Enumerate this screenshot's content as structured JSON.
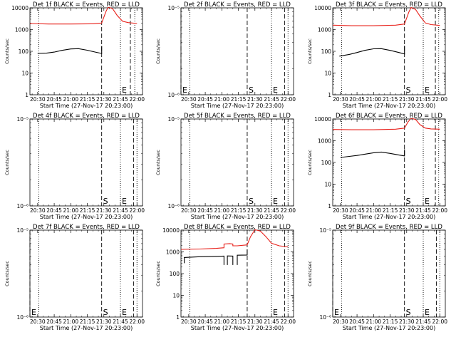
{
  "chart_data": [
    {
      "type": "line",
      "title": "Det 1f BLACK = Events, RED = LLD",
      "xlabel": "Start Time (27-Nov-17 20:23:00)",
      "ylabel": "Counts/sec",
      "yscale": "log",
      "ylim": [
        1,
        10000
      ],
      "ytick_values": [
        1,
        10,
        100,
        1000,
        10000
      ],
      "ytick_labels": [
        "1",
        "10",
        "100",
        "1000",
        "10000"
      ],
      "xlim": [
        "20:23",
        "22:05"
      ],
      "xtick_labels": [
        "20:30",
        "20:45",
        "21:00",
        "21:15",
        "21:30",
        "21:45",
        "22:00"
      ],
      "markers": [
        {
          "time": "20:31",
          "style": "dotted",
          "label": ""
        },
        {
          "time": "21:28",
          "style": "dashed",
          "label": ""
        },
        {
          "time": "21:45",
          "style": "dotted",
          "label": "E"
        },
        {
          "time": "21:54",
          "style": "dashed",
          "label": ""
        },
        {
          "time": "21:58",
          "style": "dotted",
          "label": ""
        }
      ],
      "series": [
        {
          "color": "#000000",
          "segments": [
            [
              [
                "20:30",
                80
              ],
              [
                "20:38",
                82
              ],
              [
                "20:45",
                92
              ],
              [
                "20:52",
                110
              ],
              [
                "21:00",
                128
              ],
              [
                "21:07",
                132
              ],
              [
                "21:15",
                112
              ],
              [
                "21:23",
                90
              ],
              [
                "21:28",
                80
              ],
              [
                "21:28",
                175
              ]
            ]
          ]
        },
        {
          "color": "#e8201a",
          "segments": [
            [
              [
                "20:23",
                1900
              ],
              [
                "20:40",
                1800
              ],
              [
                "21:00",
                1800
              ],
              [
                "21:20",
                1850
              ],
              [
                "21:28",
                2000
              ],
              [
                "21:32",
                7000
              ],
              [
                "21:34",
                11000
              ],
              [
                "21:38",
                9000
              ],
              [
                "21:42",
                4500
              ],
              [
                "21:47",
                2400
              ],
              [
                "21:52",
                2100
              ],
              [
                "22:00",
                1900
              ]
            ]
          ]
        }
      ]
    },
    {
      "type": "line",
      "title": "Det 2f BLACK = Events, RED = LLD",
      "xlabel": "Start Time (27-Nov-17 20:23:00)",
      "ylabel": "Counts/sec",
      "yscale": "log",
      "ylim": [
        1e-06,
        1e-05
      ],
      "ytick_values": [
        1e-06,
        1e-05
      ],
      "ytick_labels": [
        "10⁻⁶",
        "10⁻⁵"
      ],
      "xlim": [
        "20:23",
        "22:05"
      ],
      "xtick_labels": [
        "20:30",
        "20:45",
        "21:00",
        "21:15",
        "21:30",
        "21:45",
        "22:00"
      ],
      "markers": [
        {
          "time": "20:23",
          "style": "dashed",
          "label": "E"
        },
        {
          "time": "20:31",
          "style": "dotted",
          "label": ""
        },
        {
          "time": "21:23",
          "style": "dashed",
          "label": "S"
        },
        {
          "time": "21:45",
          "style": "dotted",
          "label": "E"
        },
        {
          "time": "21:57",
          "style": "dashed",
          "label": ""
        },
        {
          "time": "22:00",
          "style": "dotted",
          "label": ""
        }
      ],
      "series": []
    },
    {
      "type": "line",
      "title": "Det 3f BLACK = Events, RED = LLD",
      "xlabel": "Start Time (27-Nov-17 20:23:00)",
      "ylabel": "Counts/sec",
      "yscale": "log",
      "ylim": [
        1,
        10000
      ],
      "ytick_values": [
        1,
        10,
        100,
        1000,
        10000
      ],
      "ytick_labels": [
        "1",
        "10",
        "100",
        "1000",
        "10000"
      ],
      "xlim": [
        "20:23",
        "22:05"
      ],
      "xtick_labels": [
        "20:30",
        "20:45",
        "21:00",
        "21:15",
        "21:30",
        "21:45",
        "22:00"
      ],
      "markers": [
        {
          "time": "20:31",
          "style": "dotted",
          "label": ""
        },
        {
          "time": "21:28",
          "style": "dashed",
          "label": "S"
        },
        {
          "time": "21:45",
          "style": "dotted",
          "label": "E"
        },
        {
          "time": "21:56",
          "style": "dashed",
          "label": ""
        },
        {
          "time": "21:59",
          "style": "dotted",
          "label": ""
        }
      ],
      "series": [
        {
          "color": "#000000",
          "segments": [
            [
              [
                "20:29",
                60
              ],
              [
                "20:38",
                72
              ],
              [
                "20:45",
                88
              ],
              [
                "20:52",
                110
              ],
              [
                "21:00",
                130
              ],
              [
                "21:07",
                132
              ],
              [
                "21:15",
                110
              ],
              [
                "21:23",
                88
              ],
              [
                "21:28",
                75
              ],
              [
                "21:28",
                180
              ]
            ]
          ]
        },
        {
          "color": "#e8201a",
          "segments": [
            [
              [
                "20:23",
                1600
              ],
              [
                "20:40",
                1500
              ],
              [
                "21:00",
                1500
              ],
              [
                "21:20",
                1600
              ],
              [
                "21:28",
                1800
              ],
              [
                "21:32",
                6500
              ],
              [
                "21:34",
                10500
              ],
              [
                "21:38",
                8500
              ],
              [
                "21:42",
                4200
              ],
              [
                "21:47",
                2000
              ],
              [
                "21:52",
                1700
              ],
              [
                "22:00",
                1550
              ]
            ]
          ]
        }
      ]
    },
    {
      "type": "line",
      "title": "Det 4f BLACK = Events, RED = LLD",
      "xlabel": "Start Time (27-Nov-17 20:23:00)",
      "ylabel": "Counts/sec",
      "yscale": "log",
      "ylim": [
        1e-06,
        1e-05
      ],
      "ytick_values": [
        1e-06,
        1e-05
      ],
      "ytick_labels": [
        "10⁻⁶",
        "10⁻⁵"
      ],
      "xlim": [
        "20:23",
        "22:05"
      ],
      "xtick_labels": [
        "20:30",
        "20:45",
        "21:00",
        "21:15",
        "21:30",
        "21:45",
        "22:00"
      ],
      "markers": [
        {
          "time": "20:31",
          "style": "dotted",
          "label": ""
        },
        {
          "time": "21:28",
          "style": "dashed",
          "label": "S"
        },
        {
          "time": "21:45",
          "style": "dotted",
          "label": "E"
        },
        {
          "time": "21:57",
          "style": "dashed",
          "label": ""
        },
        {
          "time": "22:00",
          "style": "dotted",
          "label": ""
        }
      ],
      "series": []
    },
    {
      "type": "line",
      "title": "Det 5f BLACK = Events, RED = LLD",
      "xlabel": "Start Time (27-Nov-17 20:23:00)",
      "ylabel": "Counts/sec",
      "yscale": "log",
      "ylim": [
        1e-06,
        1e-05
      ],
      "ytick_values": [
        1e-06,
        1e-05
      ],
      "ytick_labels": [
        "10⁻⁶",
        "10⁻⁵"
      ],
      "xlim": [
        "20:23",
        "22:05"
      ],
      "xtick_labels": [
        "20:30",
        "20:45",
        "21:00",
        "21:15",
        "21:30",
        "21:45",
        "22:00"
      ],
      "markers": [
        {
          "time": "20:31",
          "style": "dotted",
          "label": ""
        },
        {
          "time": "21:23",
          "style": "dashed",
          "label": "S"
        },
        {
          "time": "21:45",
          "style": "dotted",
          "label": "E"
        },
        {
          "time": "21:57",
          "style": "dashed",
          "label": ""
        },
        {
          "time": "22:00",
          "style": "dotted",
          "label": ""
        }
      ],
      "series": []
    },
    {
      "type": "line",
      "title": "Det 6f BLACK = Events, RED = LLD",
      "xlabel": "Start Time (27-Nov-17 20:23:00)",
      "ylabel": "Counts/sec",
      "yscale": "log",
      "ylim": [
        1,
        10000
      ],
      "ytick_values": [
        1,
        10,
        100,
        1000,
        10000
      ],
      "ytick_labels": [
        "1",
        "10",
        "100",
        "1000",
        "10000"
      ],
      "xlim": [
        "20:23",
        "22:05"
      ],
      "xtick_labels": [
        "20:30",
        "20:45",
        "21:00",
        "21:15",
        "21:30",
        "21:45",
        "22:00"
      ],
      "markers": [
        {
          "time": "20:31",
          "style": "dotted",
          "label": ""
        },
        {
          "time": "21:28",
          "style": "dashed",
          "label": "S"
        },
        {
          "time": "21:45",
          "style": "dotted",
          "label": "E"
        },
        {
          "time": "21:56",
          "style": "dashed",
          "label": ""
        },
        {
          "time": "21:59",
          "style": "dotted",
          "label": ""
        }
      ],
      "series": [
        {
          "color": "#000000",
          "segments": [
            [
              [
                "20:30",
                170
              ],
              [
                "20:38",
                190
              ],
              [
                "20:45",
                210
              ],
              [
                "20:52",
                240
              ],
              [
                "21:00",
                280
              ],
              [
                "21:07",
                300
              ],
              [
                "21:15",
                260
              ],
              [
                "21:23",
                220
              ],
              [
                "21:28",
                200
              ],
              [
                "21:28",
                400
              ]
            ]
          ]
        },
        {
          "color": "#e8201a",
          "segments": [
            [
              [
                "20:23",
                3300
              ],
              [
                "20:40",
                3200
              ],
              [
                "21:00",
                3200
              ],
              [
                "21:20",
                3400
              ],
              [
                "21:28",
                3800
              ],
              [
                "21:31",
                7000
              ],
              [
                "21:34",
                11000
              ],
              [
                "21:38",
                9500
              ],
              [
                "21:42",
                5500
              ],
              [
                "21:47",
                3800
              ],
              [
                "21:52",
                3500
              ],
              [
                "22:00",
                3400
              ]
            ]
          ]
        }
      ]
    },
    {
      "type": "line",
      "title": "Det 7f BLACK = Events, RED = LLD",
      "xlabel": "Start Time (27-Nov-17 20:23:00)",
      "ylabel": "Counts/sec",
      "yscale": "log",
      "ylim": [
        1e-06,
        1e-05
      ],
      "ytick_values": [
        1e-06,
        1e-05
      ],
      "ytick_labels": [
        "10⁻⁶",
        "10⁻⁵"
      ],
      "xlim": [
        "20:23",
        "22:05"
      ],
      "xtick_labels": [
        "20:30",
        "20:45",
        "21:00",
        "21:15",
        "21:30",
        "21:45",
        "22:00"
      ],
      "markers": [
        {
          "time": "20:23",
          "style": "dashed",
          "label": "E"
        },
        {
          "time": "20:31",
          "style": "dotted",
          "label": ""
        },
        {
          "time": "21:28",
          "style": "dashed",
          "label": "S"
        },
        {
          "time": "21:45",
          "style": "dotted",
          "label": "E"
        },
        {
          "time": "21:57",
          "style": "dashed",
          "label": ""
        },
        {
          "time": "22:00",
          "style": "dotted",
          "label": ""
        }
      ],
      "series": []
    },
    {
      "type": "line",
      "title": "Det 8f BLACK = Events, RED = LLD",
      "xlabel": "Start Time (27-Nov-17 20:23:00)",
      "ylabel": "Counts/sec",
      "yscale": "log",
      "ylim": [
        1,
        10000
      ],
      "ytick_values": [
        1,
        10,
        100,
        1000,
        10000
      ],
      "ytick_labels": [
        "1",
        "10",
        "100",
        "1000",
        "10000"
      ],
      "xlim": [
        "20:23",
        "22:05"
      ],
      "xtick_labels": [
        "20:30",
        "20:45",
        "21:00",
        "21:15",
        "21:30",
        "21:45",
        "22:00"
      ],
      "markers": [
        {
          "time": "20:31",
          "style": "dotted",
          "label": ""
        },
        {
          "time": "21:23",
          "style": "dashed",
          "label": ""
        },
        {
          "time": "21:45",
          "style": "dotted",
          "label": "E"
        },
        {
          "time": "21:57",
          "style": "dashed",
          "label": ""
        },
        {
          "time": "22:00",
          "style": "dotted",
          "label": ""
        }
      ],
      "series": [
        {
          "color": "#000000",
          "segments": [
            [
              [
                "20:26",
                300
              ],
              [
                "20:26",
                550
              ],
              [
                "20:40",
                600
              ],
              [
                "20:55",
                620
              ],
              [
                "21:02",
                640
              ],
              [
                "21:02",
                250
              ]
            ],
            [
              [
                "21:05",
                250
              ],
              [
                "21:05",
                650
              ],
              [
                "21:10",
                640
              ],
              [
                "21:10",
                250
              ]
            ],
            [
              [
                "21:14",
                250
              ],
              [
                "21:14",
                700
              ],
              [
                "21:23",
                720
              ],
              [
                "21:23",
                1300
              ]
            ]
          ]
        },
        {
          "color": "#e8201a",
          "segments": [
            [
              [
                "20:23",
                1300
              ],
              [
                "20:40",
                1350
              ],
              [
                "20:55",
                1450
              ],
              [
                "21:02",
                1550
              ],
              [
                "21:02",
                2300
              ],
              [
                "21:07",
                2400
              ],
              [
                "21:10",
                2300
              ],
              [
                "21:10",
                1900
              ],
              [
                "21:14",
                1900
              ],
              [
                "21:23",
                2100
              ],
              [
                "21:26",
                5000
              ],
              [
                "21:30",
                10500
              ],
              [
                "21:35",
                9000
              ],
              [
                "21:40",
                5000
              ],
              [
                "21:45",
                2500
              ],
              [
                "21:52",
                1900
              ],
              [
                "22:00",
                1700
              ]
            ]
          ]
        }
      ]
    },
    {
      "type": "line",
      "title": "Det 9f BLACK = Events, RED = LLD",
      "xlabel": "Start Time (27-Nov-17 20:23:00)",
      "ylabel": "Counts/sec",
      "yscale": "log",
      "ylim": [
        1e-06,
        1e-05
      ],
      "ytick_values": [
        1e-06,
        1e-05
      ],
      "ytick_labels": [
        "10⁻⁶",
        "10⁻⁵"
      ],
      "xlim": [
        "20:23",
        "22:05"
      ],
      "xtick_labels": [
        "20:30",
        "20:45",
        "21:00",
        "21:15",
        "21:30",
        "21:45",
        "22:00"
      ],
      "markers": [
        {
          "time": "20:23",
          "style": "dashed",
          "label": "E"
        },
        {
          "time": "20:31",
          "style": "dotted",
          "label": ""
        },
        {
          "time": "21:28",
          "style": "dashed",
          "label": "S"
        },
        {
          "time": "21:45",
          "style": "dotted",
          "label": "E"
        },
        {
          "time": "21:57",
          "style": "dashed",
          "label": ""
        },
        {
          "time": "22:00",
          "style": "dotted",
          "label": ""
        }
      ],
      "series": []
    }
  ]
}
